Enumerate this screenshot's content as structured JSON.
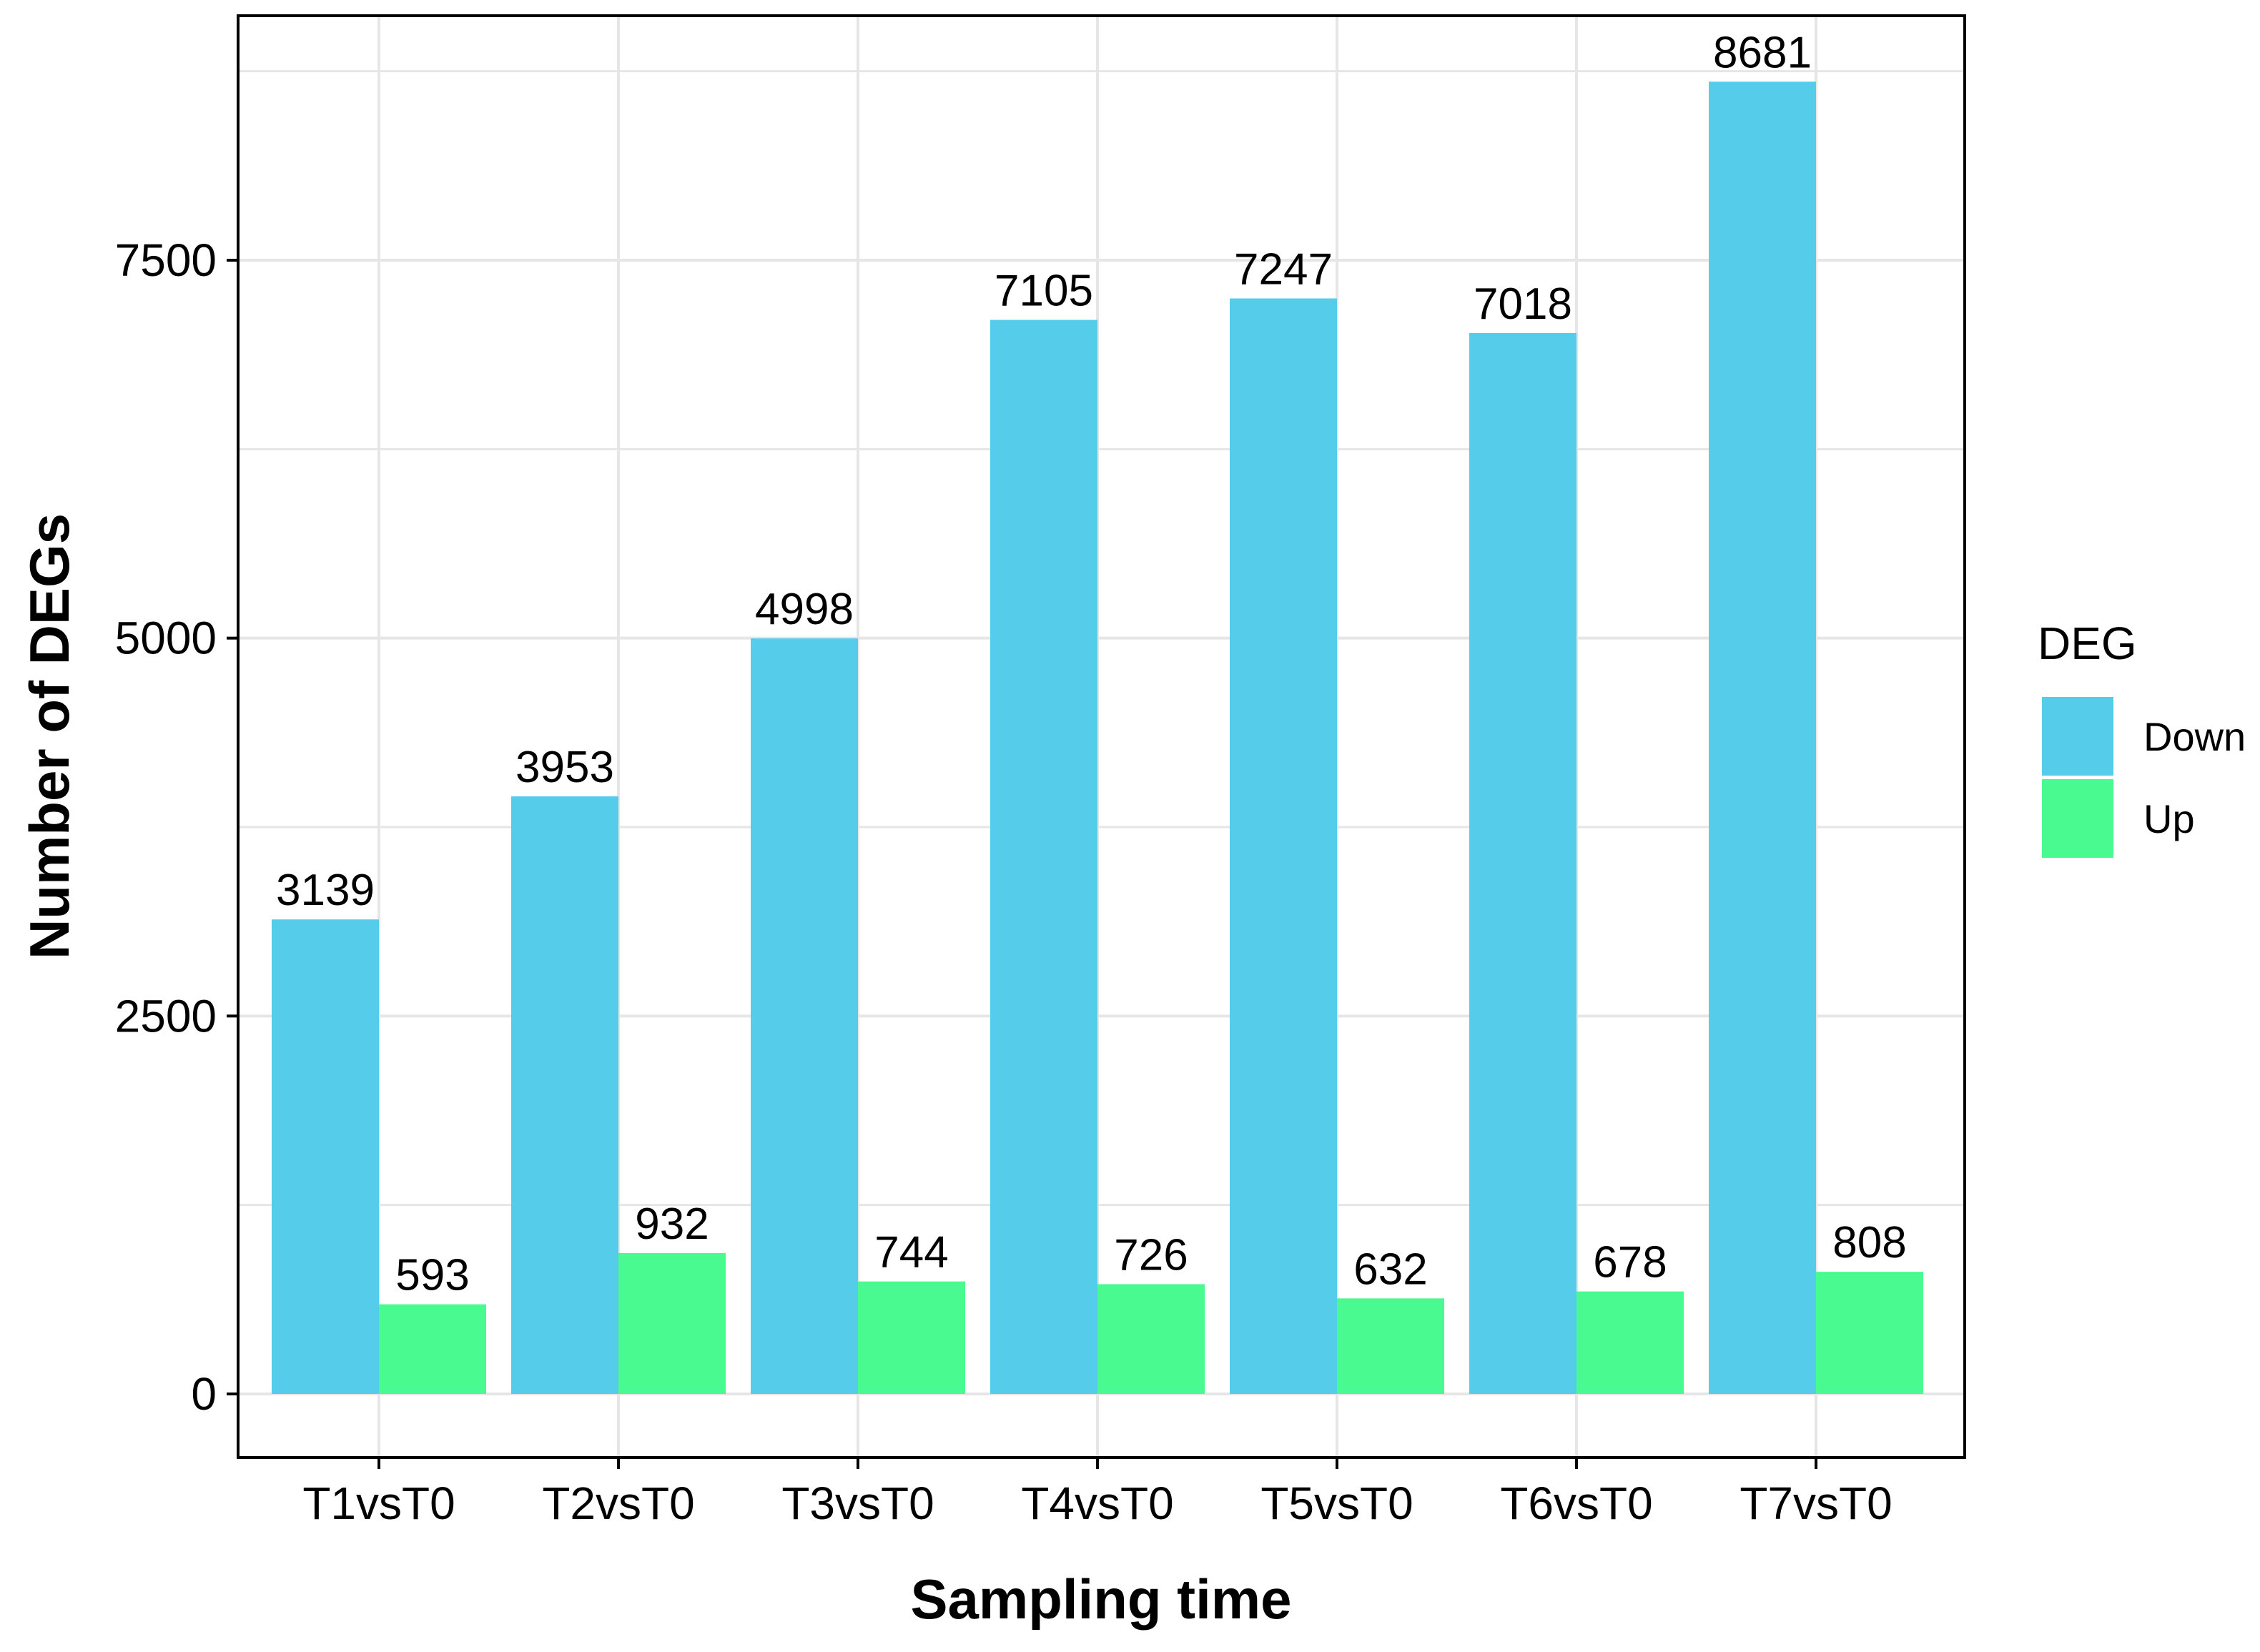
{
  "chart_data": {
    "type": "bar",
    "title": "",
    "xlabel": "Sampling time",
    "ylabel": "Number of DEGs",
    "categories": [
      "T1vsT0",
      "T2vsT0",
      "T3vsT0",
      "T4vsT0",
      "T5vsT0",
      "T6vsT0",
      "T7vsT0"
    ],
    "series": [
      {
        "name": "Down",
        "color": "#56CCEB",
        "values": [
          3139,
          3953,
          4998,
          7105,
          7247,
          7018,
          8681
        ]
      },
      {
        "name": "Up",
        "color": "#48FA90",
        "values": [
          593,
          932,
          744,
          726,
          632,
          678,
          808
        ]
      }
    ],
    "ylim": [
      -450,
      9200
    ],
    "yticks": [
      0,
      2500,
      5000,
      7500
    ],
    "yticklabels": [
      "0",
      "2500",
      "5000",
      "7500"
    ],
    "y_minor_gridlines": [
      1250,
      3750,
      6250,
      8750
    ],
    "grid": true,
    "data_labels": true,
    "legend": {
      "title": "DEG",
      "position": "right",
      "entries": [
        "Down",
        "Up"
      ]
    },
    "theme": {
      "panel_border": "#000000",
      "grid_color": "#E6E6E6",
      "label_color": "#000000"
    }
  }
}
